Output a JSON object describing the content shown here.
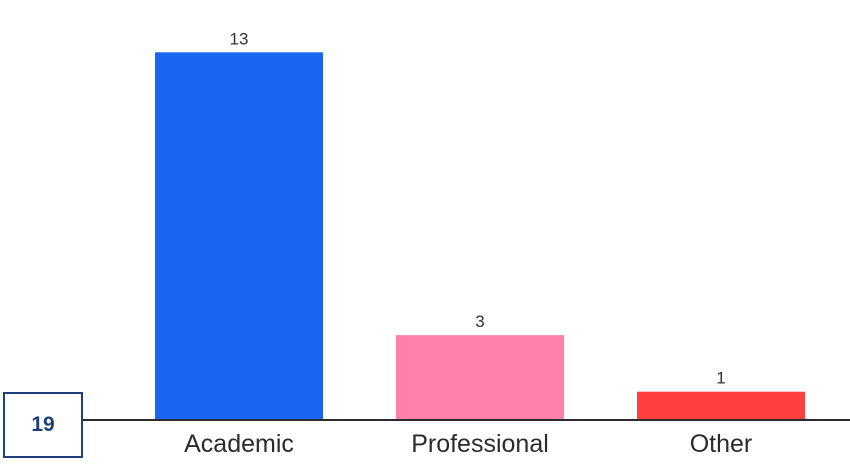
{
  "page_badge": "19",
  "chart_data": {
    "type": "bar",
    "title": "",
    "xlabel": "",
    "ylabel": "",
    "categories": [
      "Academic",
      "Professional",
      "Other"
    ],
    "values": [
      13,
      3,
      1
    ],
    "ylim": [
      0,
      14
    ],
    "grid": false,
    "legend": "none",
    "value_labels_shown": true,
    "colors": [
      "#1a66f2",
      "#ff80aa",
      "#ff4040"
    ],
    "axis_color": "#2b2b2b"
  }
}
